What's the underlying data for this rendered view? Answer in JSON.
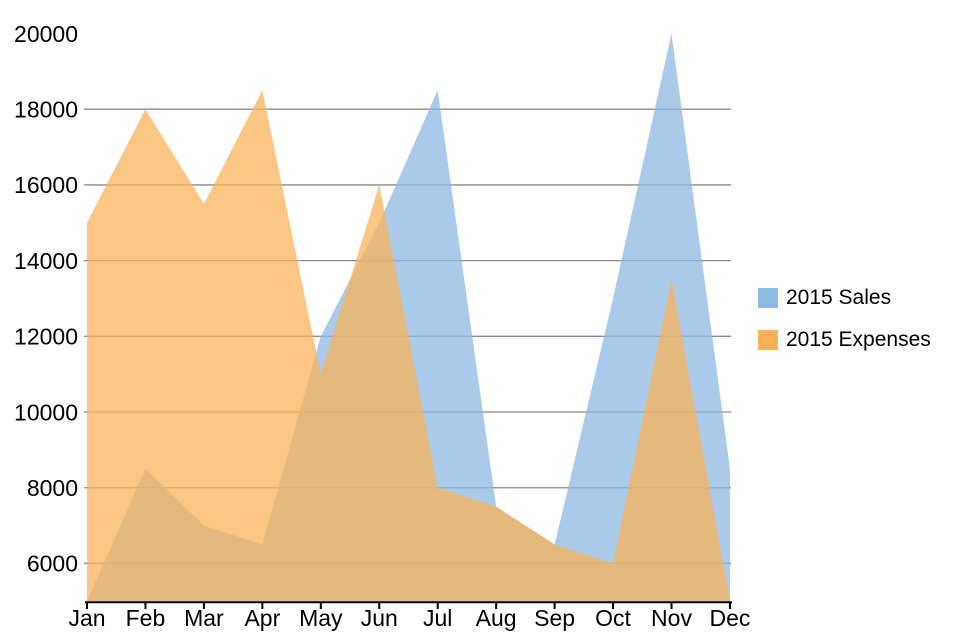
{
  "chart_data": {
    "type": "area",
    "title": "",
    "categories": [
      "Jan",
      "Feb",
      "Mar",
      "Apr",
      "May",
      "Jun",
      "Jul",
      "Aug",
      "Sep",
      "Oct",
      "Nov",
      "Dec"
    ],
    "series": [
      {
        "name": "2015 Sales",
        "color": "#8cbae1",
        "values": [
          5000,
          8500,
          7000,
          6500,
          12000,
          15000,
          18500,
          7500,
          6500,
          13000,
          20000,
          8500
        ]
      },
      {
        "name": "2015 Expenses",
        "color": "#fab259",
        "values": [
          15000,
          18000,
          15500,
          18500,
          11000,
          16000,
          8000,
          7500,
          6500,
          6000,
          13500,
          5000
        ]
      }
    ],
    "y_axis": {
      "min": 5000,
      "max": 20000,
      "tick_step": 2000,
      "tick_values": [
        6000,
        8000,
        10000,
        12000,
        14000,
        16000,
        18000,
        20000
      ],
      "gridline_values": [
        6000,
        8000,
        10000,
        12000,
        14000,
        16000,
        18000
      ]
    },
    "x_axis": {
      "label_values": [
        "Jan",
        "Feb",
        "Mar",
        "Apr",
        "May",
        "Jun",
        "Jul",
        "Aug",
        "Sep",
        "Oct",
        "Nov",
        "Dec"
      ]
    },
    "fill_opacity": 0.75,
    "grid_on": true,
    "legend_position": "right",
    "colors": {
      "gridline": "#8a8a8a",
      "axis": "#000000",
      "text": "#000000",
      "background": "#ffffff"
    },
    "legend": {
      "items": [
        {
          "label": "2015 Sales"
        },
        {
          "label": "2015 Expenses"
        }
      ]
    }
  }
}
